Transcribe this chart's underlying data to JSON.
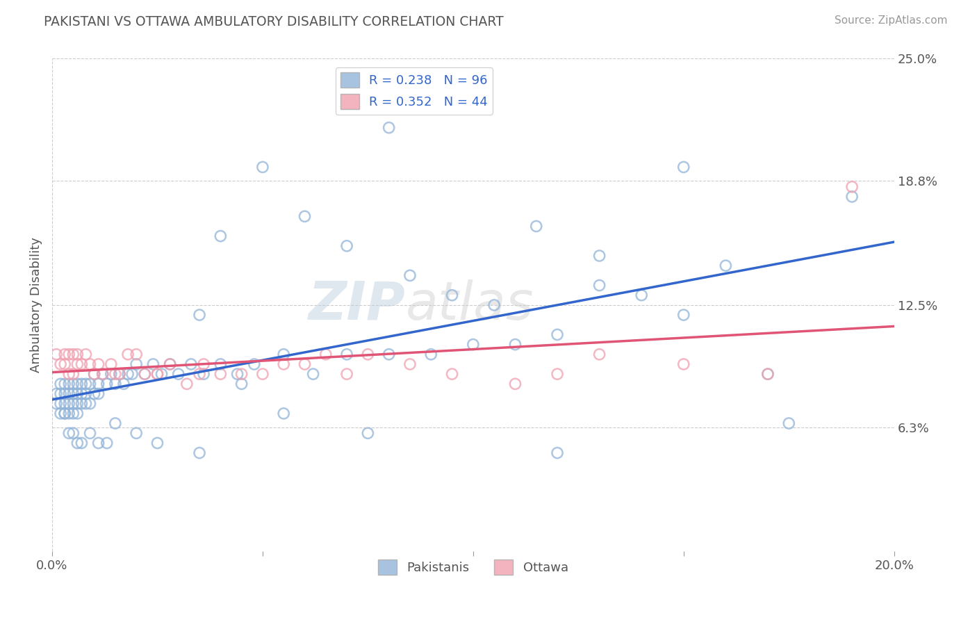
{
  "title": "PAKISTANI VS OTTAWA AMBULATORY DISABILITY CORRELATION CHART",
  "source": "Source: ZipAtlas.com",
  "ylabel": "Ambulatory Disability",
  "xlim": [
    0.0,
    0.2
  ],
  "ylim": [
    0.0,
    0.25
  ],
  "yticks_right": [
    0.063,
    0.125,
    0.188,
    0.25
  ],
  "yticklabels_right": [
    "6.3%",
    "12.5%",
    "18.8%",
    "25.0%"
  ],
  "blue_color": "#92B4D8",
  "pink_color": "#F0A0B0",
  "blue_line_color": "#3366CC",
  "pink_line_color": "#E05575",
  "bottom_legend_blue": "Pakistanis",
  "bottom_legend_pink": "Ottawa",
  "watermark_zip": "ZIP",
  "watermark_atlas": "atlas",
  "background_color": "#FFFFFF",
  "grid_color": "#CCCCCC",
  "blue_x": [
    0.001,
    0.001,
    0.002,
    0.002,
    0.002,
    0.003,
    0.003,
    0.003,
    0.003,
    0.004,
    0.004,
    0.004,
    0.004,
    0.005,
    0.005,
    0.005,
    0.005,
    0.006,
    0.006,
    0.006,
    0.006,
    0.007,
    0.007,
    0.007,
    0.008,
    0.008,
    0.008,
    0.009,
    0.009,
    0.01,
    0.01,
    0.011,
    0.011,
    0.012,
    0.013,
    0.014,
    0.015,
    0.016,
    0.017,
    0.018,
    0.019,
    0.02,
    0.022,
    0.024,
    0.026,
    0.028,
    0.03,
    0.033,
    0.036,
    0.04,
    0.044,
    0.048,
    0.055,
    0.062,
    0.07,
    0.08,
    0.09,
    0.1,
    0.11,
    0.12,
    0.085,
    0.095,
    0.105,
    0.115,
    0.13,
    0.14,
    0.15,
    0.16,
    0.17,
    0.175,
    0.04,
    0.05,
    0.06,
    0.07,
    0.08,
    0.13,
    0.15,
    0.19,
    0.035,
    0.045,
    0.055,
    0.075,
    0.12,
    0.035,
    0.025,
    0.02,
    0.015,
    0.013,
    0.011,
    0.009,
    0.007,
    0.006,
    0.005,
    0.004,
    0.003,
    0.002
  ],
  "blue_y": [
    0.075,
    0.08,
    0.075,
    0.08,
    0.085,
    0.07,
    0.075,
    0.08,
    0.085,
    0.07,
    0.075,
    0.08,
    0.085,
    0.07,
    0.075,
    0.08,
    0.085,
    0.07,
    0.075,
    0.08,
    0.085,
    0.075,
    0.08,
    0.085,
    0.075,
    0.08,
    0.085,
    0.075,
    0.085,
    0.08,
    0.09,
    0.08,
    0.085,
    0.09,
    0.085,
    0.09,
    0.085,
    0.09,
    0.085,
    0.09,
    0.09,
    0.095,
    0.09,
    0.095,
    0.09,
    0.095,
    0.09,
    0.095,
    0.09,
    0.095,
    0.09,
    0.095,
    0.1,
    0.09,
    0.1,
    0.1,
    0.1,
    0.105,
    0.105,
    0.11,
    0.14,
    0.13,
    0.125,
    0.165,
    0.135,
    0.13,
    0.12,
    0.145,
    0.09,
    0.065,
    0.16,
    0.195,
    0.17,
    0.155,
    0.215,
    0.15,
    0.195,
    0.18,
    0.12,
    0.085,
    0.07,
    0.06,
    0.05,
    0.05,
    0.055,
    0.06,
    0.065,
    0.055,
    0.055,
    0.06,
    0.055,
    0.055,
    0.06,
    0.06,
    0.07,
    0.07
  ],
  "pink_x": [
    0.001,
    0.002,
    0.003,
    0.003,
    0.004,
    0.004,
    0.005,
    0.005,
    0.006,
    0.006,
    0.007,
    0.008,
    0.009,
    0.01,
    0.011,
    0.012,
    0.014,
    0.016,
    0.018,
    0.02,
    0.022,
    0.025,
    0.028,
    0.032,
    0.036,
    0.04,
    0.045,
    0.05,
    0.055,
    0.06,
    0.065,
    0.07,
    0.075,
    0.085,
    0.095,
    0.11,
    0.12,
    0.13,
    0.15,
    0.17,
    0.19,
    0.035,
    0.025,
    0.015
  ],
  "pink_y": [
    0.1,
    0.095,
    0.095,
    0.1,
    0.09,
    0.1,
    0.09,
    0.1,
    0.095,
    0.1,
    0.095,
    0.1,
    0.095,
    0.09,
    0.095,
    0.09,
    0.095,
    0.09,
    0.1,
    0.1,
    0.09,
    0.09,
    0.095,
    0.085,
    0.095,
    0.09,
    0.09,
    0.09,
    0.095,
    0.095,
    0.1,
    0.09,
    0.1,
    0.095,
    0.09,
    0.085,
    0.09,
    0.1,
    0.095,
    0.09,
    0.185,
    0.09,
    0.09,
    0.09
  ]
}
